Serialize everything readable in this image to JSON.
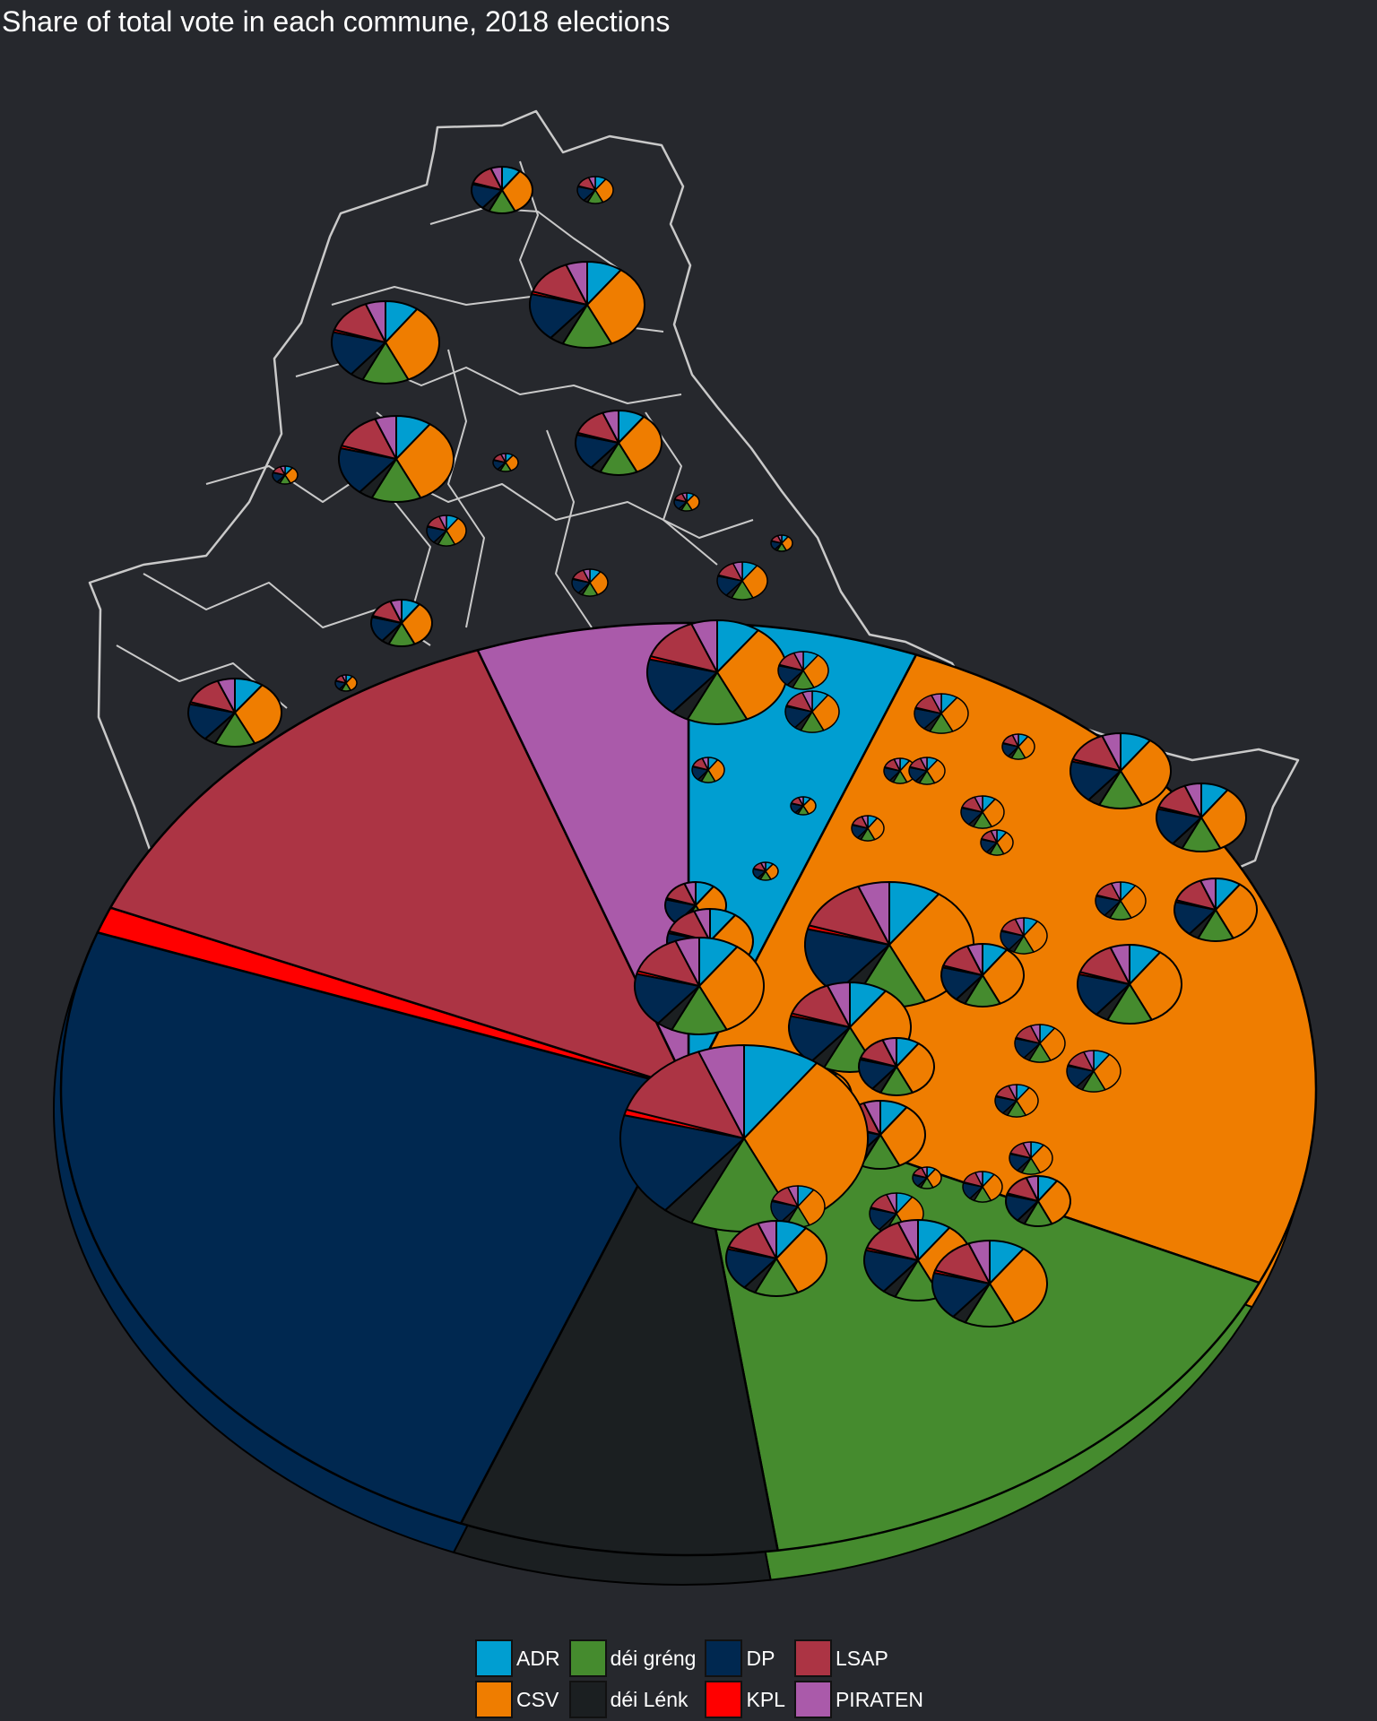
{
  "chart_data": {
    "type": "pie",
    "title": "Share of total vote in each commune, 2018 elections",
    "legend_position": "bottom",
    "parties": [
      {
        "name": "ADR",
        "color": "#009ed1"
      },
      {
        "name": "CSV",
        "color": "#ef7d00"
      },
      {
        "name": "déi gréng",
        "color": "#458b2e"
      },
      {
        "name": "déi Lénk",
        "color": "#1b1f21"
      },
      {
        "name": "DP",
        "color": "#002850"
      },
      {
        "name": "KPL",
        "color": "#ff0000"
      },
      {
        "name": "LSAP",
        "color": "#ac3444"
      },
      {
        "name": "PIRATEN",
        "color": "#aa5aaa"
      }
    ],
    "legend_order": [
      "ADR",
      "déi gréng",
      "DP",
      "LSAP",
      "CSV",
      "déi Lénk",
      "KPL",
      "PIRATEN"
    ],
    "large_pie_shares": [
      6.5,
      28.5,
      17.5,
      9.0,
      27.0,
      1.0,
      14.5,
      6.0
    ],
    "small_pie_shares": [
      10,
      33,
      14,
      4,
      18,
      1,
      14,
      6
    ]
  }
}
